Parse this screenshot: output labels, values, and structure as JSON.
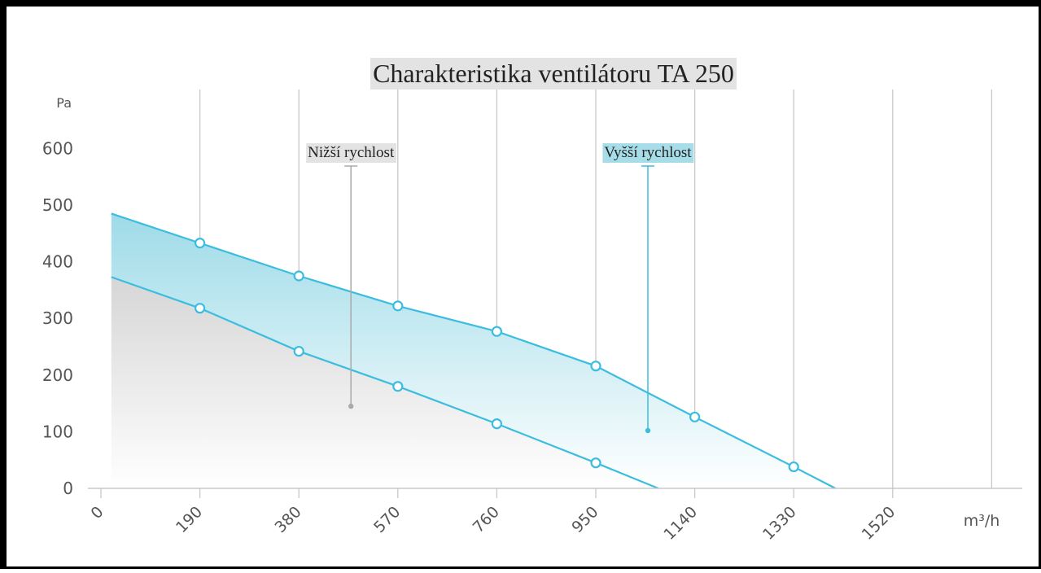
{
  "chart_data": {
    "type": "area",
    "title": "Charakteristika ventilátoru TA 250",
    "xlabel": "m³/h",
    "ylabel": "Pa",
    "xlim": [
      0,
      1800
    ],
    "ylim": [
      0,
      640
    ],
    "x_ticks": [
      "0",
      "190",
      "380",
      "570",
      "760",
      "950",
      "1140",
      "1330",
      "1520"
    ],
    "y_ticks": [
      "0",
      "100",
      "200",
      "300",
      "400",
      "500",
      "600"
    ],
    "grid": true,
    "series": [
      {
        "name": "Vyšší rychlost",
        "color": "#3bbde0",
        "x": [
          20,
          190,
          380,
          570,
          760,
          950,
          1140,
          1330,
          1410
        ],
        "y": [
          485,
          433,
          375,
          322,
          277,
          216,
          126,
          38,
          0
        ],
        "markers": [
          false,
          true,
          true,
          true,
          true,
          true,
          true,
          true,
          false
        ]
      },
      {
        "name": "Nižší rychlost",
        "color": "#3bbde0",
        "x": [
          20,
          190,
          380,
          570,
          760,
          950,
          1070
        ],
        "y": [
          373,
          318,
          242,
          180,
          114,
          45,
          0
        ],
        "markers": [
          false,
          true,
          true,
          true,
          true,
          true,
          false
        ]
      }
    ],
    "annotations": [
      {
        "text": "Nižší rychlost",
        "series": "Nižší rychlost",
        "x": 480,
        "y": 145,
        "bg": "#e3e3e3",
        "line_color": "#aaaaaa"
      },
      {
        "text": "Vyšší rychlost",
        "series": "Vyšší rychlost",
        "x": 1050,
        "y": 102,
        "bg": "#a7dde8",
        "line_color": "#3bbde0"
      }
    ]
  }
}
